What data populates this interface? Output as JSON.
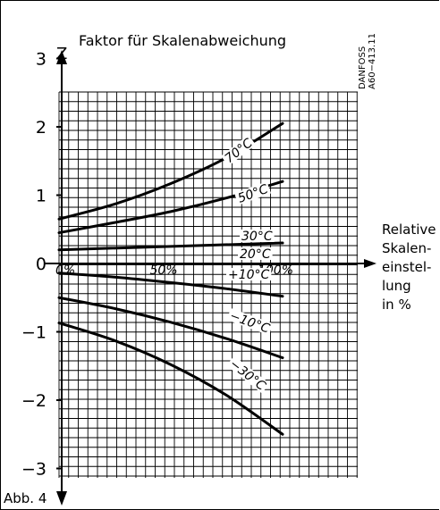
{
  "chart_data": {
    "type": "line",
    "title": "Faktor für Skalenabweichung",
    "ylabel": "Z",
    "xlabel_lines": [
      "Relative",
      "Skalen-",
      "einstel-",
      "lung",
      "in %"
    ],
    "figure_label": "Abb. 4",
    "doc_code": [
      "DANFOSS",
      "A60−413.11"
    ],
    "xlim": [
      0,
      100
    ],
    "ylim": [
      -3,
      3
    ],
    "grid": true,
    "y_ticks": [
      {
        "value": 3,
        "label": "3"
      },
      {
        "value": 2,
        "label": "2"
      },
      {
        "value": 1,
        "label": "1"
      },
      {
        "value": 0,
        "label": "0"
      },
      {
        "value": -1,
        "label": "−1"
      },
      {
        "value": -2,
        "label": "−2"
      },
      {
        "value": -3,
        "label": "−3"
      }
    ],
    "x_ticks": [
      {
        "value": 0,
        "label": "0%"
      },
      {
        "value": 50,
        "label": "50%"
      },
      {
        "value": 100,
        "label": "100%"
      }
    ],
    "series": [
      {
        "name": "70°C",
        "x": [
          0,
          25,
          50,
          75,
          100
        ],
        "y": [
          0.65,
          0.87,
          1.17,
          1.55,
          2.05
        ]
      },
      {
        "name": "50°C",
        "x": [
          0,
          25,
          50,
          75,
          100
        ],
        "y": [
          0.45,
          0.6,
          0.76,
          0.96,
          1.2
        ]
      },
      {
        "name": "30°C",
        "x": [
          0,
          100
        ],
        "y": [
          0.2,
          0.3
        ]
      },
      {
        "name": "20°C",
        "x": [
          0,
          100
        ],
        "y": [
          0.0,
          0.0
        ]
      },
      {
        "name": "+10°C",
        "x": [
          0,
          25,
          50,
          75,
          100
        ],
        "y": [
          -0.14,
          -0.2,
          -0.28,
          -0.37,
          -0.48
        ]
      },
      {
        "name": "−10°C",
        "x": [
          0,
          25,
          50,
          75,
          100
        ],
        "y": [
          -0.5,
          -0.66,
          -0.86,
          -1.1,
          -1.38
        ]
      },
      {
        "name": "−30°C",
        "x": [
          0,
          25,
          50,
          75,
          100
        ],
        "y": [
          -0.87,
          -1.13,
          -1.48,
          -1.93,
          -2.5
        ]
      }
    ]
  }
}
